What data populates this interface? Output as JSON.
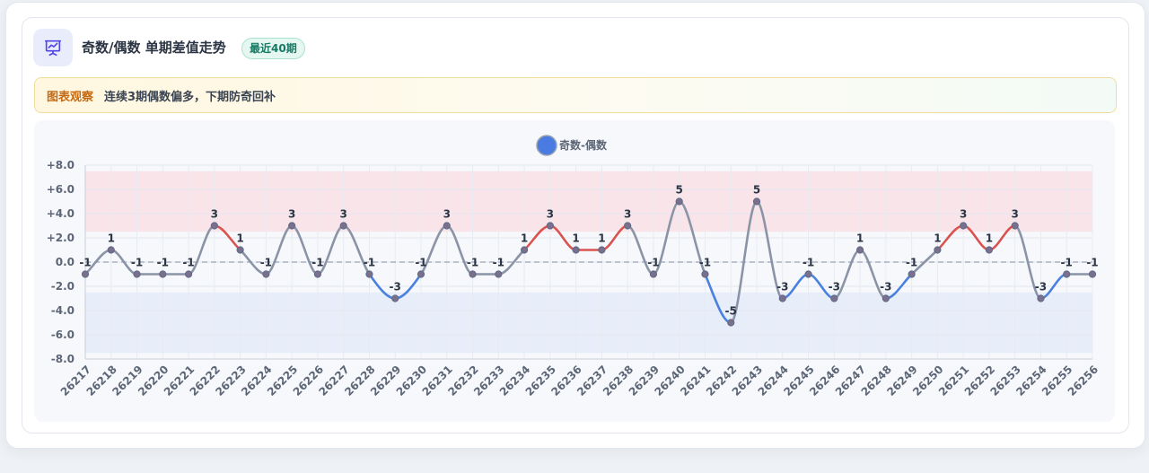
{
  "header": {
    "title": "奇数/偶数 单期差值走势",
    "badge": "最近40期",
    "icon": "presentation-chart-icon"
  },
  "insight": {
    "tag": "图表观察",
    "text": "连续3期偶数偏多，下期防奇回补"
  },
  "colors": {
    "accent": "#4f46e5",
    "line_neutral": "#8a94a6",
    "line_high": "#d9534f",
    "line_low": "#4a80e0",
    "band_high": "#f9e2e5",
    "band_low": "#e4ebf8",
    "legend_dot": "#4a7be0"
  },
  "chart_data": {
    "type": "line",
    "legend": [
      "奇数-偶数"
    ],
    "legend_position": "top-center",
    "categories": [
      "26217",
      "26218",
      "26219",
      "26220",
      "26221",
      "26222",
      "26223",
      "26224",
      "26225",
      "26226",
      "26227",
      "26228",
      "26229",
      "26230",
      "26231",
      "26232",
      "26233",
      "26234",
      "26235",
      "26236",
      "26237",
      "26238",
      "26239",
      "26240",
      "26241",
      "26242",
      "26243",
      "26244",
      "26245",
      "26246",
      "26247",
      "26248",
      "26249",
      "26250",
      "26251",
      "26252",
      "26253",
      "26254",
      "26255",
      "26256"
    ],
    "series": [
      {
        "name": "奇数-偶数",
        "values": [
          -1,
          1,
          -1,
          -1,
          -1,
          3,
          1,
          -1,
          3,
          -1,
          3,
          -1,
          -3,
          -1,
          3,
          -1,
          -1,
          1,
          3,
          1,
          1,
          3,
          -1,
          5,
          -1,
          -5,
          5,
          -3,
          -1,
          -3,
          1,
          -3,
          -1,
          1,
          3,
          1,
          3,
          -3,
          -1,
          -1
        ]
      }
    ],
    "data_labels": [
      "-1",
      "1",
      "-1",
      "-1",
      "-1",
      "3",
      "1",
      "-1",
      "3",
      "-1",
      "3",
      "-1",
      "-3",
      "-1",
      "3",
      "-1",
      "-1",
      "1",
      "3",
      "1",
      "1",
      "3",
      "-1",
      "5",
      "-1",
      "-5",
      "5",
      "-3",
      "-1",
      "-3",
      "1",
      "-3",
      "-1",
      "1",
      "3",
      "1",
      "3",
      "-3",
      "-1",
      "-1"
    ],
    "ylim": [
      -8,
      8
    ],
    "yticks": [
      "+8.0",
      "+6.0",
      "+4.0",
      "+2.0",
      "0.0",
      "-2.0",
      "-4.0",
      "-6.0",
      "-8.0"
    ],
    "reference_line": 0,
    "bands": [
      {
        "from": 2.5,
        "to": 7.5,
        "tone": "high"
      },
      {
        "from": -7.5,
        "to": -2.5,
        "tone": "low"
      }
    ],
    "grid": true
  }
}
